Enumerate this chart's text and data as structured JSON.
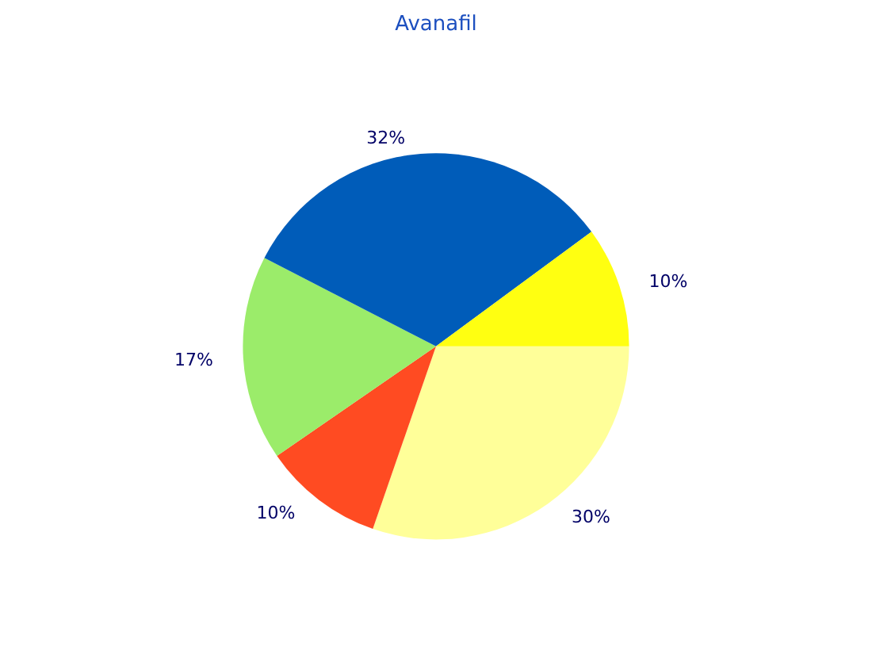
{
  "chart_data": {
    "type": "pie",
    "title": "Avanafil",
    "categories": [
      null,
      null,
      null,
      null,
      null
    ],
    "values": [
      30,
      10,
      17,
      32,
      10
    ],
    "colors": [
      "#ffff99",
      "#ff4b22",
      "#9bec6a",
      "#005cb9",
      "#ffff11"
    ],
    "value_labels": [
      "30%",
      "10%",
      "17%",
      "32%",
      "10%"
    ]
  }
}
